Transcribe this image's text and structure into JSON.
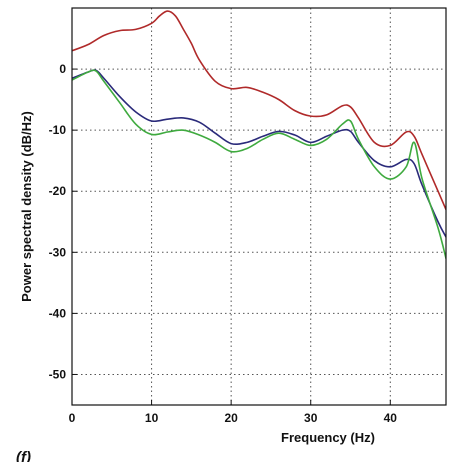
{
  "chart_data": {
    "type": "line",
    "title": "",
    "xlabel": "Frequency (Hz)",
    "ylabel": "Power spectral density (dB/Hz)",
    "xlim": [
      0,
      47
    ],
    "ylim": [
      -55,
      10
    ],
    "xticks": [
      0,
      10,
      20,
      30,
      40
    ],
    "yticks": [
      0,
      -10,
      -20,
      -30,
      -40,
      -50
    ],
    "grid": true,
    "grid_style": "dotted",
    "legend": "none",
    "series": [
      {
        "color": "#b02a2a",
        "x": [
          0,
          2,
          4,
          6,
          8,
          10,
          11,
          12,
          13,
          14,
          15,
          16,
          18,
          20,
          22,
          24,
          26,
          28,
          30,
          32,
          34,
          35,
          36,
          38,
          40,
          42,
          43,
          44,
          46,
          47
        ],
        "y": [
          3,
          4,
          5.5,
          6.3,
          6.5,
          7.5,
          8.7,
          9.5,
          8.7,
          6.5,
          4.2,
          1.5,
          -2,
          -3.2,
          -3,
          -3.8,
          -5,
          -6.8,
          -7.7,
          -7.5,
          -6,
          -6.2,
          -8,
          -12,
          -12.5,
          -10.3,
          -11,
          -14,
          -20,
          -23
        ]
      },
      {
        "color": "#2a2a7a",
        "x": [
          0,
          2,
          3,
          4,
          6,
          8,
          10,
          12,
          14,
          16,
          18,
          20,
          22,
          24,
          26,
          28,
          30,
          32,
          34,
          35,
          36,
          38,
          40,
          42,
          43,
          44,
          46,
          47
        ],
        "y": [
          -1.5,
          -0.5,
          -0.2,
          -1.5,
          -4.5,
          -7,
          -8.5,
          -8.2,
          -8,
          -8.7,
          -10.5,
          -12.2,
          -12,
          -11,
          -10.2,
          -10.8,
          -12,
          -11,
          -10,
          -10.2,
          -12,
          -15,
          -16,
          -14.8,
          -15.5,
          -19,
          -25,
          -27.5
        ]
      },
      {
        "color": "#3faa3f",
        "x": [
          0,
          2,
          3,
          4,
          6,
          8,
          10,
          12,
          14,
          16,
          18,
          20,
          22,
          24,
          26,
          28,
          30,
          32,
          34,
          35,
          36,
          38,
          40,
          42,
          43,
          44,
          46,
          47
        ],
        "y": [
          -1.8,
          -0.5,
          -0.3,
          -2,
          -5.5,
          -9,
          -10.7,
          -10.3,
          -10,
          -10.8,
          -12,
          -13.5,
          -13,
          -11.5,
          -10.5,
          -11.5,
          -12.5,
          -11.5,
          -9,
          -8.5,
          -11.5,
          -16,
          -18,
          -16,
          -12,
          -18,
          -26,
          -31
        ]
      }
    ],
    "annotations": [
      "(f)"
    ]
  }
}
